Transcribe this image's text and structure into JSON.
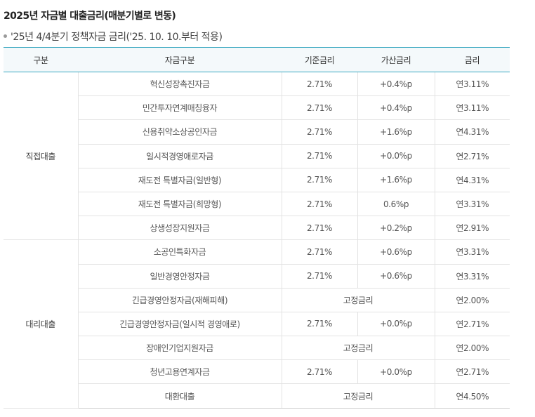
{
  "title": "2025년 자금별 대출금리(매분기별로 변동)",
  "subtitle": "'25년 4/4분기 정책자금 금리('25. 10. 10.부터 적용)",
  "headers": [
    "구분",
    "자금구분",
    "기준금리",
    "가산금리",
    "금리"
  ],
  "groups": [
    {
      "category": "직접대출",
      "rows": [
        {
          "fund": "혁신성장촉진자금",
          "base": "2.71%",
          "add": "+0.4%p",
          "rate": "연3.11%"
        },
        {
          "fund": "민간투자연계매칭융자",
          "base": "2.71%",
          "add": "+0.4%p",
          "rate": "연3.11%"
        },
        {
          "fund": "신용취약소상공인자금",
          "base": "2.71%",
          "add": "+1.6%p",
          "rate": "연4.31%"
        },
        {
          "fund": "일시적경영애로자금",
          "base": "2.71%",
          "add": "+0.0%p",
          "rate": "연2.71%"
        },
        {
          "fund": "재도전 특별자금(일반형)",
          "base": "2.71%",
          "add": "+1.6%p",
          "rate": "연4.31%"
        },
        {
          "fund": "재도전 특별자금(희망형)",
          "base": "2.71%",
          "add": "0.6%p",
          "rate": "연3.31%"
        },
        {
          "fund": "상생성장지원자금",
          "base": "2.71%",
          "add": "+0.2%p",
          "rate": "연2.91%"
        }
      ]
    },
    {
      "category": "대리대출",
      "rows": [
        {
          "fund": "소공인특화자금",
          "base": "2.71%",
          "add": "+0.6%p",
          "rate": "연3.31%"
        },
        {
          "fund": "일반경영안정자금",
          "base": "2.71%",
          "add": "+0.6%p",
          "rate": "연3.31%"
        },
        {
          "fund": "긴급경영안정자금(재해피해)",
          "fixed": "고정금리",
          "rate": "연2.00%"
        },
        {
          "fund": "긴급경영안정자금(일시적 경영애로)",
          "base": "2.71%",
          "add": "+0.0%p",
          "rate": "연2.71%"
        },
        {
          "fund": "장애인기업지원자금",
          "fixed": "고정금리",
          "rate": "연2.00%"
        },
        {
          "fund": "청년고용연계자금",
          "base": "2.71%",
          "add": "+0.0%p",
          "rate": "연2.71%"
        },
        {
          "fund": "대환대출",
          "fixed": "고정금리",
          "rate": "연4.50%"
        }
      ]
    }
  ]
}
